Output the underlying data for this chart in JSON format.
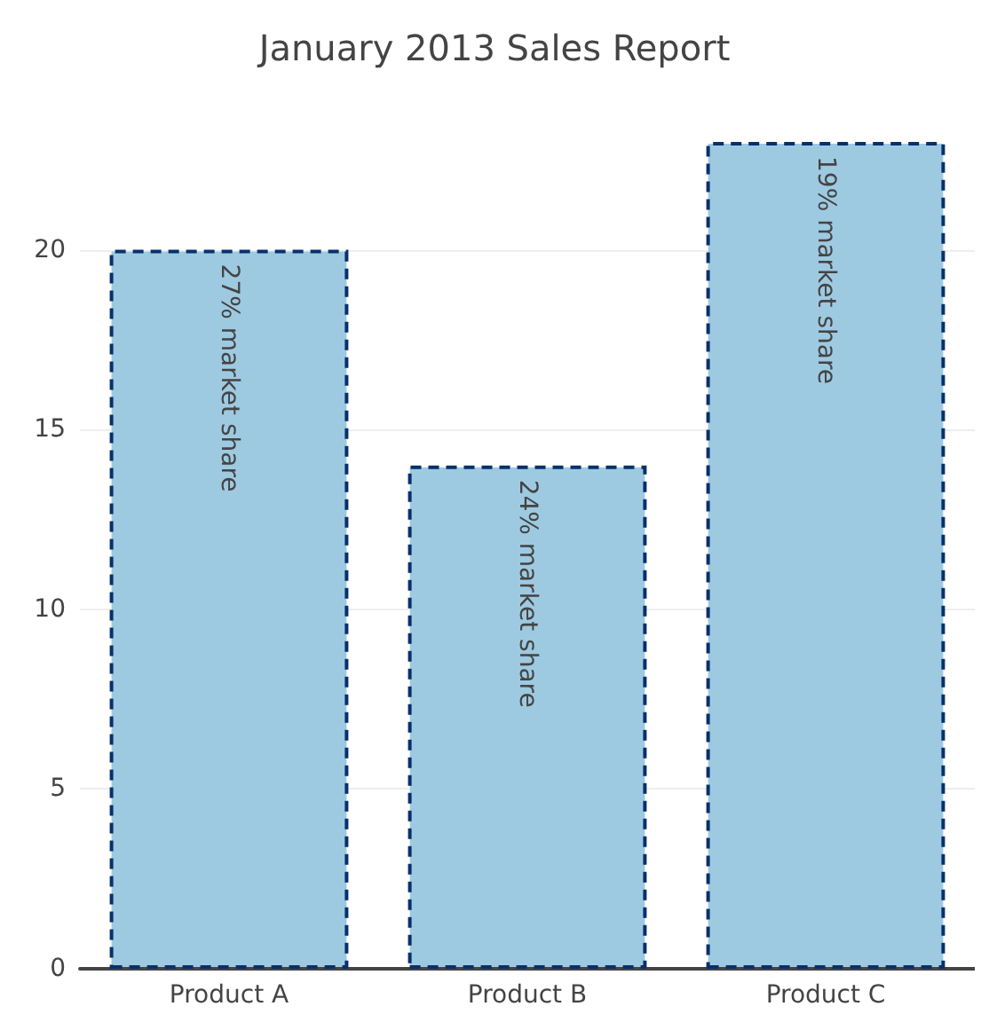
{
  "chart_data": {
    "type": "bar",
    "title": "January 2013 Sales Report",
    "categories": [
      "Product A",
      "Product B",
      "Product C"
    ],
    "values": [
      20,
      14,
      23
    ],
    "value_labels": [
      "27% market share",
      "24% market share",
      "19% market share"
    ],
    "color": "#9ecae1",
    "ylim": [
      0,
      23
    ],
    "yticks": [
      0,
      5,
      10,
      15,
      20
    ],
    "grid": "y"
  }
}
